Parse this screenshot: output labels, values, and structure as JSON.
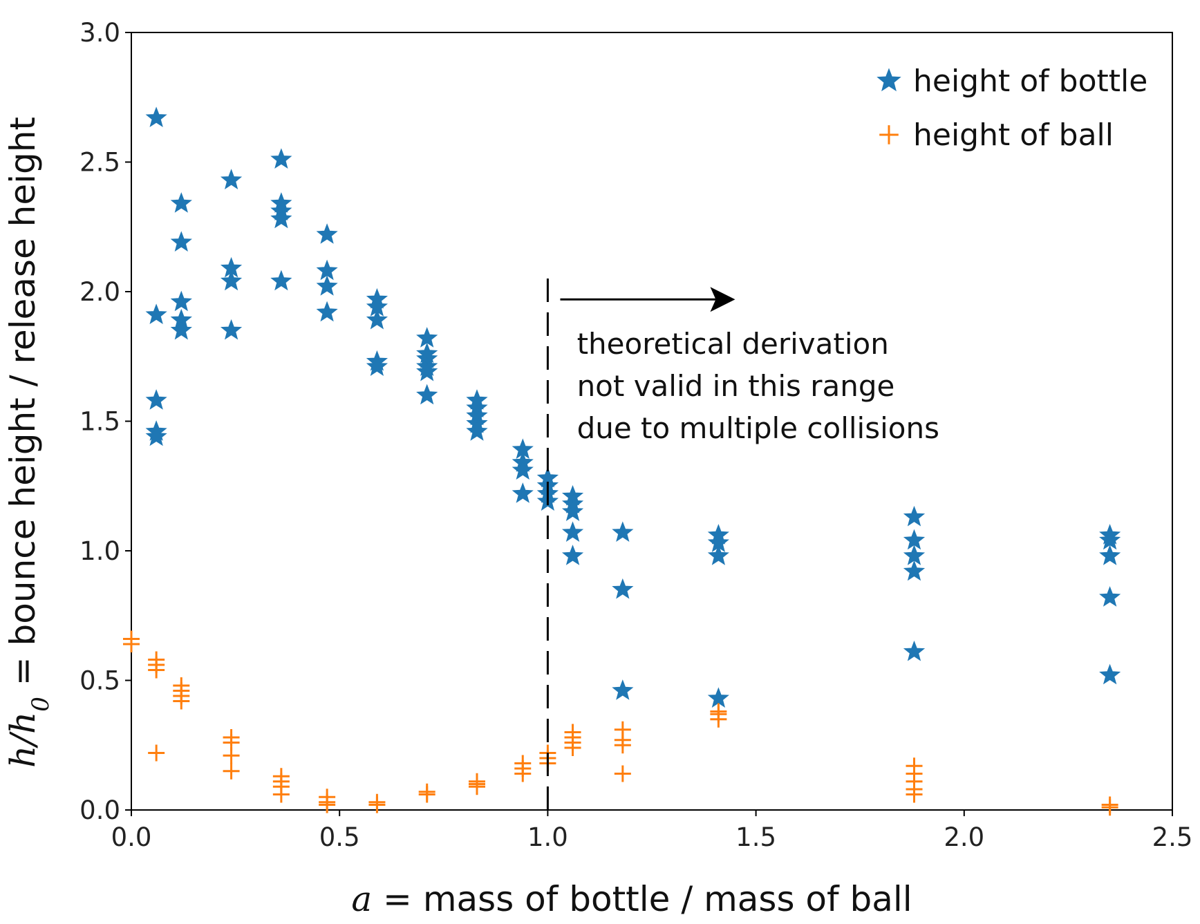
{
  "chart_data": {
    "type": "scatter",
    "xlabel": {
      "var": "a",
      "text": " = mass of bottle / mass of ball"
    },
    "ylabel": {
      "var": "h/h",
      "sub": "0",
      "text": " = bounce height / release height"
    },
    "xlim": [
      0.0,
      2.5
    ],
    "ylim": [
      0.0,
      3.0
    ],
    "xticks": [
      "0.0",
      "0.5",
      "1.0",
      "1.5",
      "2.0",
      "2.5"
    ],
    "yticks": [
      "0.0",
      "0.5",
      "1.0",
      "1.5",
      "2.0",
      "2.5",
      "3.0"
    ],
    "grid": false,
    "legend_position": "top-right",
    "series": [
      {
        "name": "height of bottle",
        "marker": "star",
        "color": "#1f77b4",
        "points": [
          [
            0.06,
            2.67
          ],
          [
            0.06,
            1.91
          ],
          [
            0.06,
            1.58
          ],
          [
            0.06,
            1.46
          ],
          [
            0.06,
            1.44
          ],
          [
            0.12,
            2.34
          ],
          [
            0.12,
            2.19
          ],
          [
            0.12,
            1.96
          ],
          [
            0.12,
            1.89
          ],
          [
            0.12,
            1.85
          ],
          [
            0.24,
            2.43
          ],
          [
            0.24,
            2.09
          ],
          [
            0.24,
            2.04
          ],
          [
            0.24,
            1.85
          ],
          [
            0.36,
            2.51
          ],
          [
            0.36,
            2.34
          ],
          [
            0.36,
            2.31
          ],
          [
            0.36,
            2.28
          ],
          [
            0.36,
            2.04
          ],
          [
            0.47,
            2.22
          ],
          [
            0.47,
            2.08
          ],
          [
            0.47,
            2.02
          ],
          [
            0.47,
            1.92
          ],
          [
            0.59,
            1.97
          ],
          [
            0.59,
            1.94
          ],
          [
            0.59,
            1.89
          ],
          [
            0.59,
            1.73
          ],
          [
            0.59,
            1.71
          ],
          [
            0.71,
            1.82
          ],
          [
            0.71,
            1.76
          ],
          [
            0.71,
            1.74
          ],
          [
            0.71,
            1.71
          ],
          [
            0.71,
            1.69
          ],
          [
            0.71,
            1.6
          ],
          [
            0.83,
            1.58
          ],
          [
            0.83,
            1.55
          ],
          [
            0.83,
            1.52
          ],
          [
            0.83,
            1.49
          ],
          [
            0.83,
            1.46
          ],
          [
            0.94,
            1.39
          ],
          [
            0.94,
            1.34
          ],
          [
            0.94,
            1.31
          ],
          [
            0.94,
            1.22
          ],
          [
            1.0,
            1.28
          ],
          [
            1.0,
            1.25
          ],
          [
            1.0,
            1.22
          ],
          [
            1.0,
            1.19
          ],
          [
            1.06,
            1.21
          ],
          [
            1.06,
            1.18
          ],
          [
            1.06,
            1.15
          ],
          [
            1.06,
            1.07
          ],
          [
            1.06,
            0.98
          ],
          [
            1.18,
            1.07
          ],
          [
            1.18,
            0.85
          ],
          [
            1.18,
            0.46
          ],
          [
            1.41,
            1.06
          ],
          [
            1.41,
            1.03
          ],
          [
            1.41,
            0.98
          ],
          [
            1.41,
            0.43
          ],
          [
            1.88,
            1.13
          ],
          [
            1.88,
            1.04
          ],
          [
            1.88,
            0.98
          ],
          [
            1.88,
            0.92
          ],
          [
            1.88,
            0.61
          ],
          [
            2.35,
            1.06
          ],
          [
            2.35,
            1.04
          ],
          [
            2.35,
            0.98
          ],
          [
            2.35,
            0.82
          ],
          [
            2.35,
            0.52
          ]
        ]
      },
      {
        "name": "height of ball",
        "marker": "plus",
        "color": "#ff7f0e",
        "points": [
          [
            0.0,
            0.66
          ],
          [
            0.0,
            0.64
          ],
          [
            0.06,
            0.58
          ],
          [
            0.06,
            0.56
          ],
          [
            0.06,
            0.54
          ],
          [
            0.06,
            0.22
          ],
          [
            0.12,
            0.48
          ],
          [
            0.12,
            0.46
          ],
          [
            0.12,
            0.44
          ],
          [
            0.12,
            0.42
          ],
          [
            0.24,
            0.28
          ],
          [
            0.24,
            0.26
          ],
          [
            0.24,
            0.21
          ],
          [
            0.24,
            0.15
          ],
          [
            0.36,
            0.13
          ],
          [
            0.36,
            0.11
          ],
          [
            0.36,
            0.09
          ],
          [
            0.36,
            0.06
          ],
          [
            0.47,
            0.05
          ],
          [
            0.47,
            0.03
          ],
          [
            0.47,
            0.02
          ],
          [
            0.59,
            0.03
          ],
          [
            0.59,
            0.02
          ],
          [
            0.71,
            0.07
          ],
          [
            0.71,
            0.06
          ],
          [
            0.83,
            0.11
          ],
          [
            0.83,
            0.1
          ],
          [
            0.83,
            0.09
          ],
          [
            0.94,
            0.18
          ],
          [
            0.94,
            0.16
          ],
          [
            0.94,
            0.14
          ],
          [
            1.0,
            0.22
          ],
          [
            1.0,
            0.2
          ],
          [
            1.0,
            0.18
          ],
          [
            1.06,
            0.3
          ],
          [
            1.06,
            0.28
          ],
          [
            1.06,
            0.26
          ],
          [
            1.06,
            0.24
          ],
          [
            1.18,
            0.31
          ],
          [
            1.18,
            0.27
          ],
          [
            1.18,
            0.25
          ],
          [
            1.18,
            0.14
          ],
          [
            1.41,
            0.38
          ],
          [
            1.41,
            0.37
          ],
          [
            1.41,
            0.35
          ],
          [
            1.88,
            0.17
          ],
          [
            1.88,
            0.14
          ],
          [
            1.88,
            0.11
          ],
          [
            1.88,
            0.08
          ],
          [
            1.88,
            0.06
          ],
          [
            2.35,
            0.02
          ],
          [
            2.35,
            0.01
          ]
        ]
      }
    ],
    "annotations": {
      "vline_x": 1.0,
      "vline_ymax": 2.09,
      "vline_style": "dashed",
      "arrow": {
        "from": [
          1.03,
          1.97
        ],
        "to": [
          1.45,
          1.97
        ]
      },
      "note_lines": [
        "theoretical derivation",
        "not valid in this range",
        "due to multiple collisions"
      ],
      "note_anchor": [
        1.07,
        1.76
      ]
    }
  }
}
